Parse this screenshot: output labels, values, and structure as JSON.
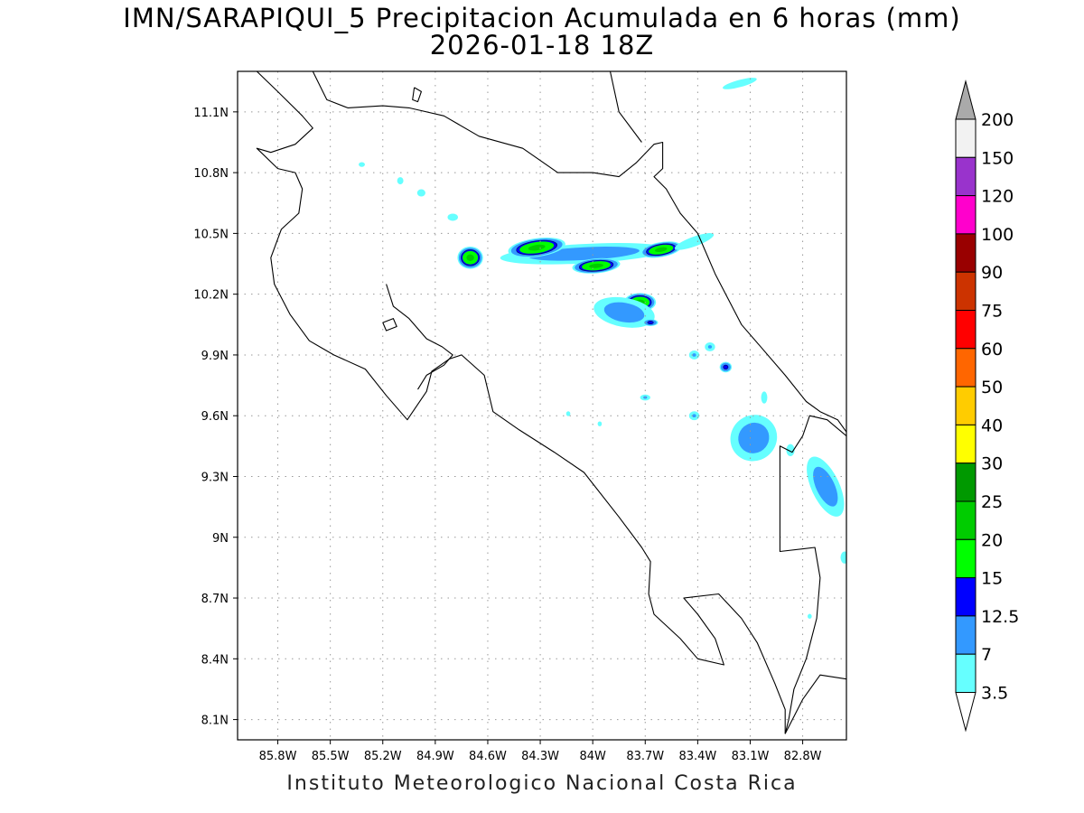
{
  "title": {
    "line1": "IMN/SARAPIQUI_5 Precipitacion Acumulada en 6 horas (mm)",
    "line2": "2026-01-18 18Z"
  },
  "footer": "Instituto Meteorologico Nacional Costa Rica",
  "map": {
    "lon_range": [
      -86.03,
      -82.55
    ],
    "lat_range": [
      8.0,
      11.3
    ],
    "lon_ticks": [
      {
        "value": -85.8,
        "label": "85.8W"
      },
      {
        "value": -85.5,
        "label": "85.5W"
      },
      {
        "value": -85.2,
        "label": "85.2W"
      },
      {
        "value": -84.9,
        "label": "84.9W"
      },
      {
        "value": -84.6,
        "label": "84.6W"
      },
      {
        "value": -84.3,
        "label": "84.3W"
      },
      {
        "value": -84.0,
        "label": "84W"
      },
      {
        "value": -83.7,
        "label": "83.7W"
      },
      {
        "value": -83.4,
        "label": "83.4W"
      },
      {
        "value": -83.1,
        "label": "83.1W"
      },
      {
        "value": -82.8,
        "label": "82.8W"
      }
    ],
    "lat_ticks": [
      {
        "value": 8.1,
        "label": "8.1N"
      },
      {
        "value": 8.4,
        "label": "8.4N"
      },
      {
        "value": 8.7,
        "label": "8.7N"
      },
      {
        "value": 9.0,
        "label": "9N"
      },
      {
        "value": 9.3,
        "label": "9.3N"
      },
      {
        "value": 9.6,
        "label": "9.6N"
      },
      {
        "value": 9.9,
        "label": "9.9N"
      },
      {
        "value": 10.2,
        "label": "10.2N"
      },
      {
        "value": 10.5,
        "label": "10.5N"
      },
      {
        "value": 10.8,
        "label": "10.8N"
      },
      {
        "value": 11.1,
        "label": "11.1N"
      }
    ],
    "grid": true,
    "coastline_color": "#000000"
  },
  "colorbar": {
    "levels": [
      "3.5",
      "7",
      "12.5",
      "15",
      "20",
      "25",
      "30",
      "40",
      "50",
      "60",
      "75",
      "90",
      "100",
      "120",
      "150",
      "200"
    ],
    "colors": [
      "#ffffff",
      "#66ffff",
      "#3399ff",
      "#0000ff",
      "#00ff00",
      "#00cc00",
      "#009900",
      "#ffff00",
      "#ffcc00",
      "#ff6600",
      "#ff0000",
      "#cc3300",
      "#990000",
      "#ff00cc",
      "#9933cc",
      "#f2f2f2",
      "#aaaaaa"
    ]
  },
  "precip_cells": [
    {
      "lon": -84.05,
      "lat": 10.4,
      "rx_deg": 0.6,
      "ry_deg": 0.06,
      "rot": -3,
      "peak_mm": 9
    },
    {
      "lon": -84.32,
      "lat": 10.43,
      "rx_deg": 0.18,
      "ry_deg": 0.05,
      "rot": -8,
      "peak_mm": 20
    },
    {
      "lon": -84.7,
      "lat": 10.38,
      "rx_deg": 0.08,
      "ry_deg": 0.06,
      "rot": 0,
      "peak_mm": 20
    },
    {
      "lon": -83.98,
      "lat": 10.34,
      "rx_deg": 0.15,
      "ry_deg": 0.04,
      "rot": -5,
      "peak_mm": 20
    },
    {
      "lon": -83.61,
      "lat": 10.42,
      "rx_deg": 0.13,
      "ry_deg": 0.04,
      "rot": -10,
      "peak_mm": 20
    },
    {
      "lon": -83.73,
      "lat": 10.16,
      "rx_deg": 0.1,
      "ry_deg": 0.05,
      "rot": 0,
      "peak_mm": 20
    },
    {
      "lon": -83.82,
      "lat": 10.11,
      "rx_deg": 0.22,
      "ry_deg": 0.09,
      "rot": 10,
      "peak_mm": 9
    },
    {
      "lon": -83.67,
      "lat": 10.06,
      "rx_deg": 0.05,
      "ry_deg": 0.02,
      "rot": 0,
      "peak_mm": 13
    },
    {
      "lon": -83.42,
      "lat": 10.46,
      "rx_deg": 0.2,
      "ry_deg": 0.04,
      "rot": -20,
      "peak_mm": 5
    },
    {
      "lon": -83.24,
      "lat": 9.84,
      "rx_deg": 0.04,
      "ry_deg": 0.03,
      "rot": 0,
      "peak_mm": 13
    },
    {
      "lon": -83.08,
      "lat": 9.52,
      "rx_deg": 0.07,
      "ry_deg": 0.05,
      "rot": -30,
      "peak_mm": 20
    },
    {
      "lon": -83.08,
      "lat": 9.49,
      "rx_deg": 0.17,
      "ry_deg": 0.14,
      "rot": -40,
      "peak_mm": 9
    },
    {
      "lon": -82.65,
      "lat": 9.21,
      "rx_deg": 0.04,
      "ry_deg": 0.05,
      "rot": -30,
      "peak_mm": 20
    },
    {
      "lon": -82.67,
      "lat": 9.25,
      "rx_deg": 0.1,
      "ry_deg": 0.2,
      "rot": -25,
      "peak_mm": 9
    },
    {
      "lon": -83.16,
      "lat": 11.24,
      "rx_deg": 0.17,
      "ry_deg": 0.03,
      "rot": -15,
      "peak_mm": 5
    },
    {
      "lon": -85.32,
      "lat": 10.84,
      "rx_deg": 0.03,
      "ry_deg": 0.02,
      "rot": 0,
      "peak_mm": 5
    },
    {
      "lon": -85.1,
      "lat": 10.76,
      "rx_deg": 0.03,
      "ry_deg": 0.03,
      "rot": 0,
      "peak_mm": 5
    },
    {
      "lon": -84.98,
      "lat": 10.7,
      "rx_deg": 0.04,
      "ry_deg": 0.03,
      "rot": 0,
      "peak_mm": 5
    },
    {
      "lon": -84.8,
      "lat": 10.58,
      "rx_deg": 0.05,
      "ry_deg": 0.03,
      "rot": 0,
      "peak_mm": 5
    },
    {
      "lon": -83.7,
      "lat": 9.69,
      "rx_deg": 0.04,
      "ry_deg": 0.02,
      "rot": 0,
      "peak_mm": 7
    },
    {
      "lon": -83.42,
      "lat": 9.9,
      "rx_deg": 0.04,
      "ry_deg": 0.03,
      "rot": 0,
      "peak_mm": 7
    },
    {
      "lon": -83.33,
      "lat": 9.94,
      "rx_deg": 0.04,
      "ry_deg": 0.03,
      "rot": 0,
      "peak_mm": 7
    },
    {
      "lon": -83.42,
      "lat": 9.6,
      "rx_deg": 0.04,
      "ry_deg": 0.03,
      "rot": 0,
      "peak_mm": 7
    },
    {
      "lon": -82.87,
      "lat": 9.43,
      "rx_deg": 0.04,
      "ry_deg": 0.05,
      "rot": 0,
      "peak_mm": 5
    },
    {
      "lon": -82.56,
      "lat": 8.9,
      "rx_deg": 0.04,
      "ry_deg": 0.05,
      "rot": 0,
      "peak_mm": 5
    },
    {
      "lon": -82.76,
      "lat": 8.61,
      "rx_deg": 0.02,
      "ry_deg": 0.02,
      "rot": 0,
      "peak_mm": 5
    },
    {
      "lon": -84.14,
      "lat": 9.61,
      "rx_deg": 0.02,
      "ry_deg": 0.02,
      "rot": 0,
      "peak_mm": 5
    },
    {
      "lon": -83.96,
      "lat": 9.56,
      "rx_deg": 0.02,
      "ry_deg": 0.02,
      "rot": 0,
      "peak_mm": 5
    },
    {
      "lon": -83.02,
      "lat": 9.69,
      "rx_deg": 0.03,
      "ry_deg": 0.05,
      "rot": 0,
      "peak_mm": 5
    }
  ],
  "coastlines": [
    [
      [
        -85.92,
        11.3
      ],
      [
        -85.8,
        11.2
      ],
      [
        -85.66,
        11.08
      ],
      [
        -85.6,
        11.02
      ],
      [
        -85.7,
        10.94
      ],
      [
        -85.84,
        10.9
      ],
      [
        -85.92,
        10.92
      ],
      [
        -85.8,
        10.82
      ],
      [
        -85.7,
        10.8
      ],
      [
        -85.66,
        10.72
      ],
      [
        -85.68,
        10.6
      ],
      [
        -85.78,
        10.52
      ],
      [
        -85.84,
        10.38
      ],
      [
        -85.82,
        10.25
      ],
      [
        -85.73,
        10.1
      ],
      [
        -85.62,
        9.97
      ],
      [
        -85.48,
        9.9
      ],
      [
        -85.3,
        9.83
      ],
      [
        -85.18,
        9.7
      ],
      [
        -85.06,
        9.58
      ],
      [
        -84.95,
        9.72
      ],
      [
        -84.92,
        9.82
      ],
      [
        -84.82,
        9.88
      ],
      [
        -84.75,
        9.9
      ],
      [
        -84.62,
        9.8
      ],
      [
        -84.57,
        9.62
      ],
      [
        -84.42,
        9.53
      ],
      [
        -84.22,
        9.42
      ],
      [
        -84.05,
        9.32
      ],
      [
        -83.85,
        9.1
      ],
      [
        -83.72,
        8.95
      ],
      [
        -83.67,
        8.88
      ],
      [
        -83.68,
        8.72
      ],
      [
        -83.65,
        8.62
      ],
      [
        -83.5,
        8.5
      ],
      [
        -83.4,
        8.4
      ],
      [
        -83.25,
        8.37
      ],
      [
        -83.3,
        8.5
      ],
      [
        -83.4,
        8.62
      ],
      [
        -83.48,
        8.7
      ],
      [
        -83.28,
        8.72
      ],
      [
        -83.15,
        8.6
      ],
      [
        -83.06,
        8.48
      ],
      [
        -82.96,
        8.28
      ],
      [
        -82.9,
        8.15
      ],
      [
        -82.9,
        8.03
      ]
    ],
    [
      [
        -85.18,
        10.25
      ],
      [
        -85.14,
        10.14
      ],
      [
        -85.05,
        10.08
      ],
      [
        -84.95,
        9.98
      ],
      [
        -84.86,
        9.94
      ],
      [
        -84.8,
        9.9
      ],
      [
        -84.85,
        9.85
      ],
      [
        -84.95,
        9.8
      ],
      [
        -85.0,
        9.73
      ]
    ],
    [
      [
        -85.2,
        10.06
      ],
      [
        -85.14,
        10.08
      ],
      [
        -85.12,
        10.04
      ],
      [
        -85.18,
        10.02
      ],
      [
        -85.2,
        10.06
      ]
    ],
    [
      [
        -85.6,
        11.3
      ],
      [
        -85.52,
        11.16
      ],
      [
        -85.4,
        11.12
      ],
      [
        -85.2,
        11.13
      ],
      [
        -85.05,
        11.12
      ],
      [
        -84.85,
        11.08
      ],
      [
        -84.65,
        10.98
      ],
      [
        -84.4,
        10.92
      ],
      [
        -84.2,
        10.8
      ],
      [
        -84.0,
        10.8
      ],
      [
        -83.85,
        10.78
      ],
      [
        -83.75,
        10.85
      ],
      [
        -83.65,
        10.94
      ],
      [
        -83.6,
        10.95
      ],
      [
        -83.6,
        10.82
      ],
      [
        -83.65,
        10.78
      ],
      [
        -83.58,
        10.72
      ],
      [
        -83.5,
        10.6
      ],
      [
        -83.4,
        10.5
      ],
      [
        -83.3,
        10.3
      ],
      [
        -83.15,
        10.05
      ],
      [
        -83.05,
        9.95
      ],
      [
        -82.9,
        9.8
      ],
      [
        -82.78,
        9.67
      ],
      [
        -82.7,
        9.62
      ],
      [
        -82.6,
        9.58
      ],
      [
        -82.55,
        9.52
      ]
    ],
    [
      [
        -83.9,
        11.3
      ],
      [
        -83.85,
        11.1
      ],
      [
        -83.72,
        10.95
      ]
    ],
    [
      [
        -85.02,
        11.22
      ],
      [
        -84.98,
        11.2
      ],
      [
        -85.0,
        11.15
      ],
      [
        -85.03,
        11.16
      ],
      [
        -85.02,
        11.22
      ]
    ],
    [
      [
        -82.55,
        9.5
      ],
      [
        -82.66,
        9.58
      ],
      [
        -82.76,
        9.6
      ],
      [
        -82.8,
        9.5
      ],
      [
        -82.86,
        9.42
      ],
      [
        -82.93,
        9.45
      ],
      [
        -82.93,
        8.93
      ],
      [
        -82.73,
        8.95
      ],
      [
        -82.7,
        8.8
      ],
      [
        -82.72,
        8.6
      ],
      [
        -82.78,
        8.4
      ],
      [
        -82.85,
        8.25
      ],
      [
        -82.88,
        8.1
      ],
      [
        -82.9,
        8.03
      ]
    ],
    [
      [
        -82.55,
        8.3
      ],
      [
        -82.7,
        8.32
      ],
      [
        -82.8,
        8.2
      ],
      [
        -82.9,
        8.03
      ]
    ]
  ]
}
